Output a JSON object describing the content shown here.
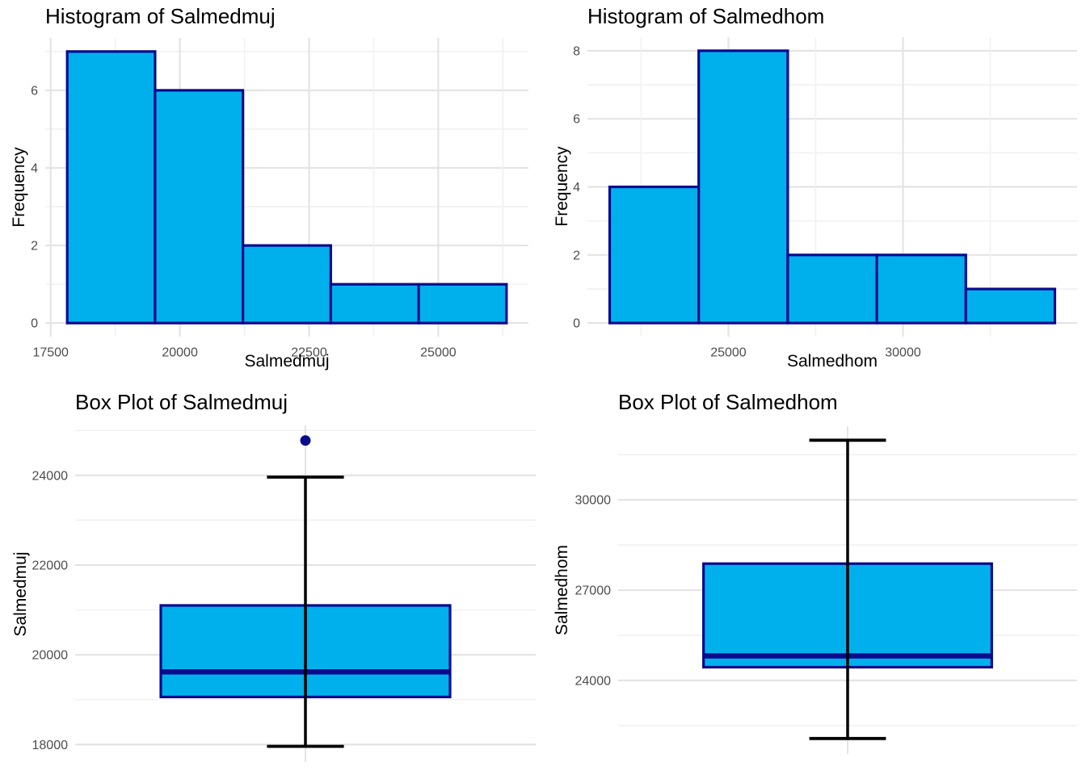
{
  "figure": {
    "colors": {
      "bar_fill": "#00B0EC",
      "bar_border": "#0A0A8C",
      "median_line": "#0A0A8C",
      "whisker": "#000000",
      "outlier": "#0A0A8C",
      "grid_major": "#E4E4E4",
      "grid_minor": "#F1F1F1",
      "tick_label": "#4D4D4D",
      "text": "#000000",
      "background": "#FFFFFF"
    }
  },
  "chart_data": [
    {
      "id": "hist-salmedmuj",
      "type": "bar",
      "subtype": "histogram",
      "title": "Histogram of Salmedmuj",
      "xlabel": "Salmedmuj",
      "ylabel": "Frequency",
      "bin_edges": [
        17820,
        19520,
        21220,
        22920,
        24620,
        26320
      ],
      "counts": [
        7,
        6,
        2,
        1,
        1
      ],
      "xticks": [
        17500,
        20000,
        22500,
        25000
      ],
      "xminor": [
        18750,
        21250,
        23750,
        26250
      ],
      "yticks": [
        0,
        2,
        4,
        6
      ],
      "yminor": [
        1,
        3,
        5,
        7
      ],
      "xlim": [
        17395,
        26745
      ],
      "ylim": [
        -0.35,
        7.35
      ],
      "grid": "on",
      "legend": "none"
    },
    {
      "id": "hist-salmedhom",
      "type": "bar",
      "subtype": "histogram",
      "title": "Histogram of Salmedhom",
      "xlabel": "Salmedhom",
      "ylabel": "Frequency",
      "bin_edges": [
        21600,
        24150,
        26700,
        29250,
        31800,
        34350
      ],
      "counts": [
        4,
        8,
        2,
        2,
        1
      ],
      "xticks": [
        25000,
        30000
      ],
      "xminor": [
        22500,
        27500,
        32500
      ],
      "yticks": [
        0,
        2,
        4,
        6,
        8
      ],
      "yminor": [
        1,
        3,
        5,
        7
      ],
      "xlim": [
        20963,
        34987
      ],
      "ylim": [
        -0.4,
        8.4
      ],
      "grid": "on",
      "legend": "none"
    },
    {
      "id": "box-salmedmuj",
      "type": "boxplot",
      "title": "Box Plot of Salmedmuj",
      "ylabel": "Salmedmuj",
      "stats": {
        "whisker_min": 17960,
        "q1": 19060,
        "median": 19620,
        "q3": 21100,
        "whisker_max": 23960
      },
      "outliers": [
        24775
      ],
      "yticks": [
        18000,
        20000,
        22000,
        24000
      ],
      "yminor": [
        19000,
        21000,
        23000,
        25000
      ],
      "ylim": [
        17609,
        25111
      ],
      "grid": "on",
      "legend": "none"
    },
    {
      "id": "box-salmedhom",
      "type": "boxplot",
      "title": "Box Plot of Salmedhom",
      "ylabel": "Salmedhom",
      "stats": {
        "whisker_min": 22070,
        "q1": 24440,
        "median": 24815,
        "q3": 27880,
        "whisker_max": 31980
      },
      "outliers": [],
      "yticks": [
        24000,
        27000,
        30000
      ],
      "yminor": [
        22500,
        25500,
        28500,
        31500
      ],
      "ylim": [
        21555,
        32445
      ],
      "grid": "on",
      "legend": "none"
    }
  ]
}
